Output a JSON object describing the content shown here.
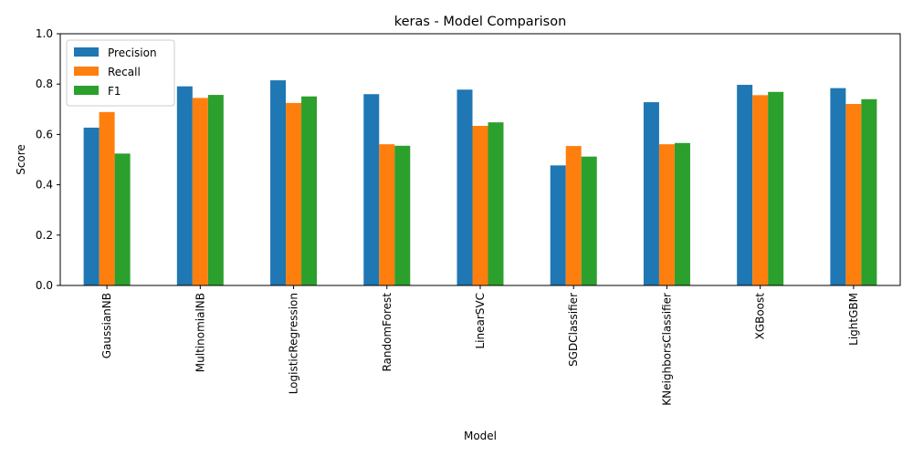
{
  "chart_data": {
    "type": "bar",
    "title": "keras - Model Comparison",
    "xlabel": "Model",
    "ylabel": "Score",
    "ylim": [
      0,
      1.0
    ],
    "yticks": [
      "0.0",
      "0.2",
      "0.4",
      "0.6",
      "0.8",
      "1.0"
    ],
    "grid": false,
    "legend_position": "top-left",
    "categories": [
      "GaussianNB",
      "MultinomialNB",
      "LogisticRegression",
      "RandomForest",
      "LinearSVC",
      "SGDClassifier",
      "KNeighborsClassifier",
      "XGBoost",
      "LightGBM"
    ],
    "series": [
      {
        "name": "Precision",
        "color": "#1f77b4",
        "values": [
          0.627,
          0.791,
          0.815,
          0.76,
          0.778,
          0.477,
          0.728,
          0.797,
          0.784
        ]
      },
      {
        "name": "Recall",
        "color": "#ff7f0e",
        "values": [
          0.689,
          0.745,
          0.725,
          0.561,
          0.634,
          0.554,
          0.561,
          0.756,
          0.721
        ]
      },
      {
        "name": "F1",
        "color": "#2ca02c",
        "values": [
          0.524,
          0.757,
          0.751,
          0.555,
          0.648,
          0.512,
          0.566,
          0.769,
          0.74
        ]
      }
    ]
  }
}
